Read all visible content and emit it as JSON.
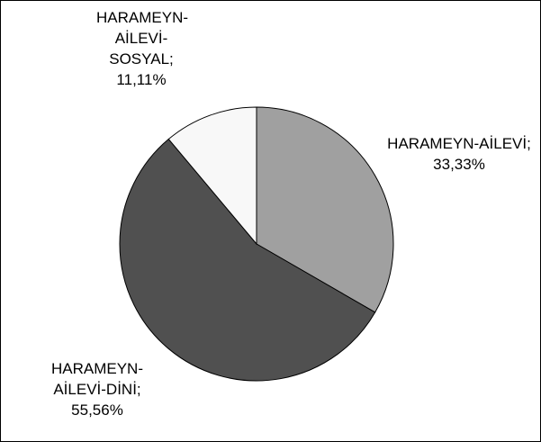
{
  "chart_data": {
    "type": "pie",
    "values": [
      33.33,
      55.56,
      11.11
    ],
    "value_labels": [
      "HARAMEYN-AİLEVİ; 33,33%",
      "HARAMEYN-AİLEVİ-DİNİ; 55,56%",
      "HARAMEYN-AİLEVİ-SOSYAL; 11,11%"
    ],
    "colors": [
      "#a0a0a0",
      "#505050",
      "#f8f8f8"
    ]
  }
}
